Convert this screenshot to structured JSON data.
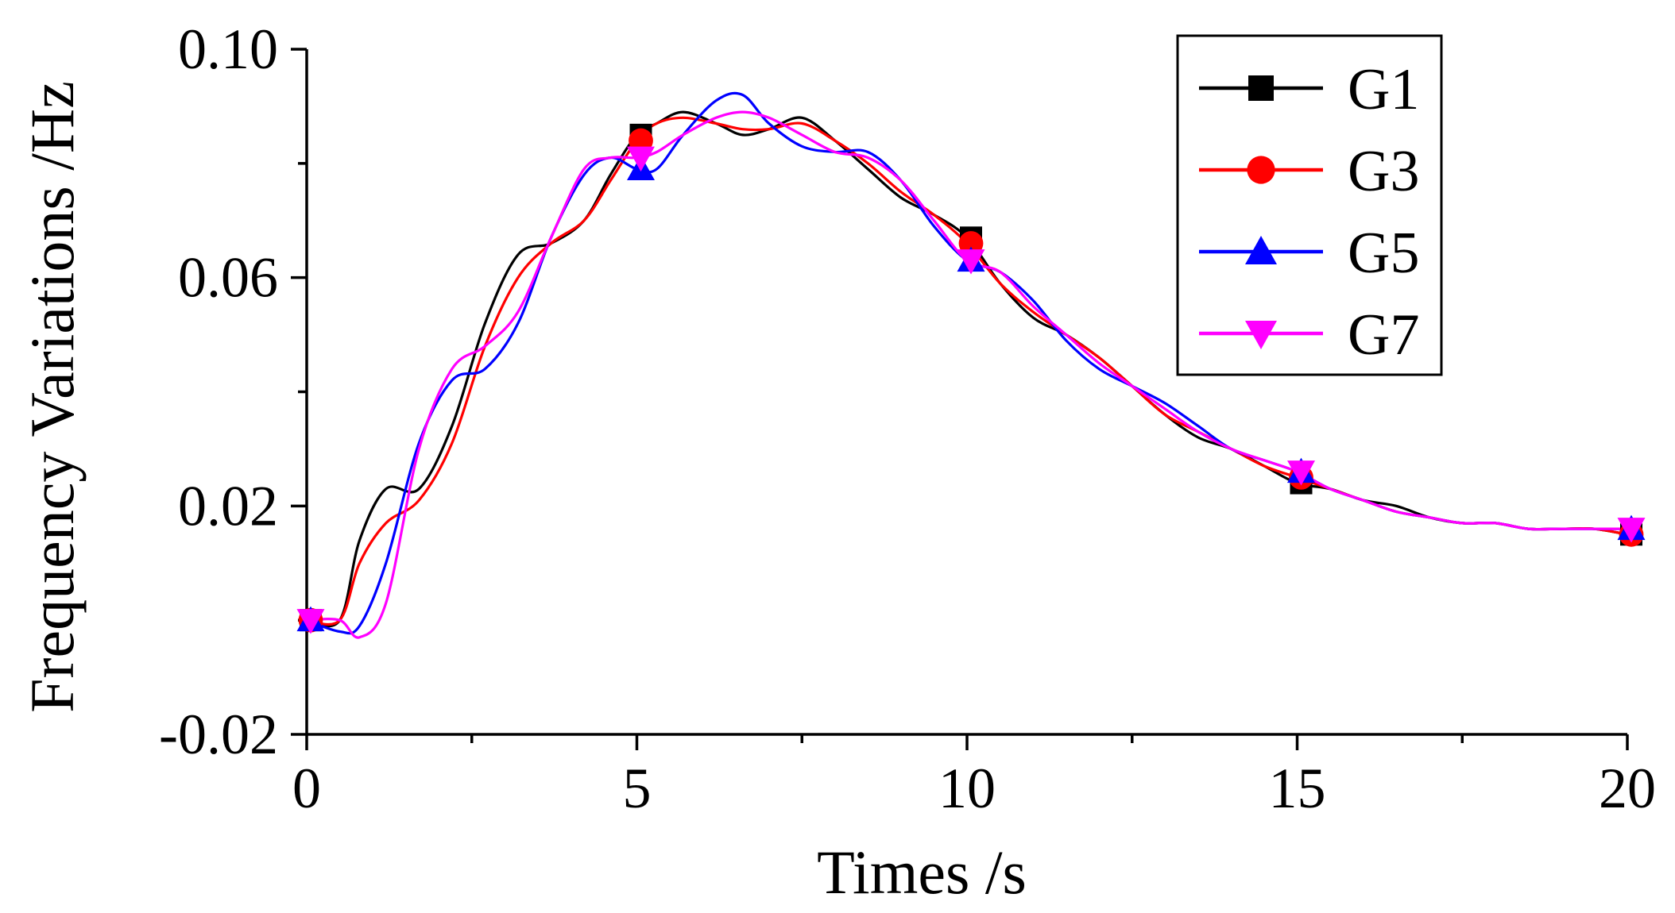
{
  "chart_data": {
    "type": "line",
    "title": "",
    "xlabel": "Times /s",
    "ylabel": "Frequency Variations /Hz",
    "xlim": [
      0,
      20
    ],
    "ylim": [
      -0.02,
      0.1
    ],
    "xticks": [
      0,
      5,
      10,
      15,
      20
    ],
    "xtick_labels": [
      "0",
      "5",
      "10",
      "15",
      "20"
    ],
    "yticks": [
      -0.02,
      0.02,
      0.06,
      0.1
    ],
    "ytick_labels": [
      "-0.02",
      "0.02",
      "0.06",
      "0.10"
    ],
    "grid": false,
    "legend_position": "top-right",
    "marker_x": [
      0,
      5,
      10,
      15,
      20
    ],
    "series": [
      {
        "name": "G1",
        "color": "#000000",
        "marker": "square",
        "x": [
          0,
          0.5,
          0.8,
          1.2,
          1.7,
          2.2,
          2.7,
          3.2,
          3.7,
          4.2,
          4.6,
          5.0,
          5.3,
          5.7,
          6.2,
          6.6,
          7.0,
          7.5,
          8.0,
          8.5,
          9.0,
          9.5,
          10.0,
          10.5,
          11.0,
          11.5,
          12.0,
          12.5,
          13.0,
          13.5,
          14.0,
          14.5,
          15.0,
          15.5,
          16.0,
          16.5,
          17.0,
          17.5,
          18.0,
          18.5,
          19.0,
          19.5,
          20.0
        ],
        "y": [
          0.0,
          0.0,
          0.014,
          0.023,
          0.023,
          0.034,
          0.052,
          0.064,
          0.066,
          0.07,
          0.078,
          0.085,
          0.087,
          0.089,
          0.087,
          0.085,
          0.086,
          0.088,
          0.084,
          0.079,
          0.074,
          0.071,
          0.067,
          0.059,
          0.053,
          0.05,
          0.046,
          0.041,
          0.036,
          0.032,
          0.03,
          0.027,
          0.024,
          0.023,
          0.021,
          0.02,
          0.018,
          0.017,
          0.017,
          0.016,
          0.016,
          0.016,
          0.015
        ]
      },
      {
        "name": "G3",
        "color": "#ff0000",
        "marker": "circle",
        "x": [
          0,
          0.5,
          0.8,
          1.2,
          1.7,
          2.2,
          2.7,
          3.2,
          3.7,
          4.2,
          4.6,
          5.0,
          5.3,
          5.7,
          6.2,
          6.6,
          7.0,
          7.5,
          8.0,
          8.5,
          9.0,
          9.5,
          10.0,
          10.5,
          11.0,
          11.5,
          12.0,
          12.5,
          13.0,
          13.5,
          14.0,
          14.5,
          15.0,
          15.5,
          16.0,
          16.5,
          17.0,
          17.5,
          18.0,
          18.5,
          19.0,
          19.5,
          20.0
        ],
        "y": [
          0.0,
          0.0,
          0.01,
          0.017,
          0.021,
          0.031,
          0.048,
          0.06,
          0.066,
          0.07,
          0.077,
          0.084,
          0.087,
          0.088,
          0.087,
          0.086,
          0.086,
          0.087,
          0.084,
          0.08,
          0.075,
          0.071,
          0.066,
          0.059,
          0.054,
          0.05,
          0.046,
          0.041,
          0.036,
          0.033,
          0.03,
          0.027,
          0.025,
          0.023,
          0.021,
          0.019,
          0.018,
          0.017,
          0.017,
          0.016,
          0.016,
          0.016,
          0.015
        ]
      },
      {
        "name": "G5",
        "color": "#0000ff",
        "marker": "triangle-up",
        "x": [
          0,
          0.5,
          0.8,
          1.2,
          1.7,
          2.2,
          2.7,
          3.2,
          3.7,
          4.2,
          4.6,
          5.0,
          5.3,
          5.7,
          6.2,
          6.6,
          7.0,
          7.5,
          8.0,
          8.5,
          9.0,
          9.5,
          10.0,
          10.5,
          11.0,
          11.5,
          12.0,
          12.5,
          13.0,
          13.5,
          14.0,
          14.5,
          15.0,
          15.5,
          16.0,
          16.5,
          17.0,
          17.5,
          18.0,
          18.5,
          19.0,
          19.5,
          20.0
        ],
        "y": [
          0.0,
          -0.002,
          -0.001,
          0.01,
          0.031,
          0.042,
          0.044,
          0.052,
          0.067,
          0.078,
          0.081,
          0.079,
          0.079,
          0.085,
          0.091,
          0.092,
          0.087,
          0.083,
          0.082,
          0.082,
          0.077,
          0.069,
          0.063,
          0.061,
          0.056,
          0.049,
          0.044,
          0.041,
          0.038,
          0.034,
          0.03,
          0.028,
          0.026,
          0.023,
          0.021,
          0.019,
          0.018,
          0.017,
          0.017,
          0.016,
          0.016,
          0.016,
          0.016
        ]
      },
      {
        "name": "G7",
        "color": "#ff00ff",
        "marker": "triangle-down",
        "x": [
          0,
          0.5,
          0.8,
          1.2,
          1.7,
          2.2,
          2.7,
          3.2,
          3.7,
          4.2,
          4.6,
          5.0,
          5.3,
          5.7,
          6.2,
          6.6,
          7.0,
          7.5,
          8.0,
          8.5,
          9.0,
          9.5,
          10.0,
          10.5,
          11.0,
          11.5,
          12.0,
          12.5,
          13.0,
          13.5,
          14.0,
          14.5,
          15.0,
          15.5,
          16.0,
          16.5,
          17.0,
          17.5,
          18.0,
          18.5,
          19.0,
          19.5,
          20.0
        ],
        "y": [
          0.0,
          0.0,
          -0.003,
          0.003,
          0.03,
          0.044,
          0.048,
          0.054,
          0.067,
          0.079,
          0.081,
          0.081,
          0.082,
          0.085,
          0.088,
          0.089,
          0.088,
          0.085,
          0.082,
          0.081,
          0.077,
          0.07,
          0.063,
          0.061,
          0.055,
          0.05,
          0.045,
          0.041,
          0.037,
          0.033,
          0.03,
          0.028,
          0.026,
          0.023,
          0.021,
          0.019,
          0.018,
          0.017,
          0.017,
          0.016,
          0.016,
          0.016,
          0.016
        ]
      }
    ]
  }
}
